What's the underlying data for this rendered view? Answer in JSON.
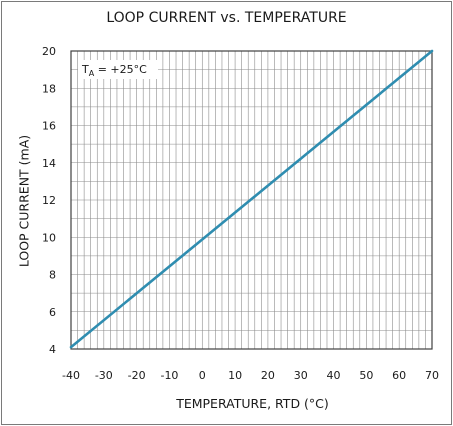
{
  "chart_data": {
    "type": "line",
    "title": "LOOP CURRENT vs. TEMPERATURE",
    "xlabel": "TEMPERATURE, RTD (°C)",
    "ylabel": "LOOP CURRENT (mA)",
    "xlim": [
      -40,
      70
    ],
    "ylim": [
      4,
      20
    ],
    "x_ticks": [
      "-40",
      "-30",
      "-20",
      "-10",
      "0",
      "10",
      "20",
      "30",
      "40",
      "50",
      "60",
      "70"
    ],
    "y_ticks": [
      "4",
      "6",
      "8",
      "10",
      "12",
      "14",
      "16",
      "18",
      "20"
    ],
    "annotation": {
      "symbol": "T",
      "subscript": "A",
      "text": " = +25°C"
    },
    "grid": true,
    "series": [
      {
        "x": [
          -40,
          70
        ],
        "y": [
          4.1,
          20
        ]
      }
    ],
    "colors": {
      "line": "#2f8db0",
      "grid": "#8c8c8c",
      "axis": "#404040"
    }
  }
}
